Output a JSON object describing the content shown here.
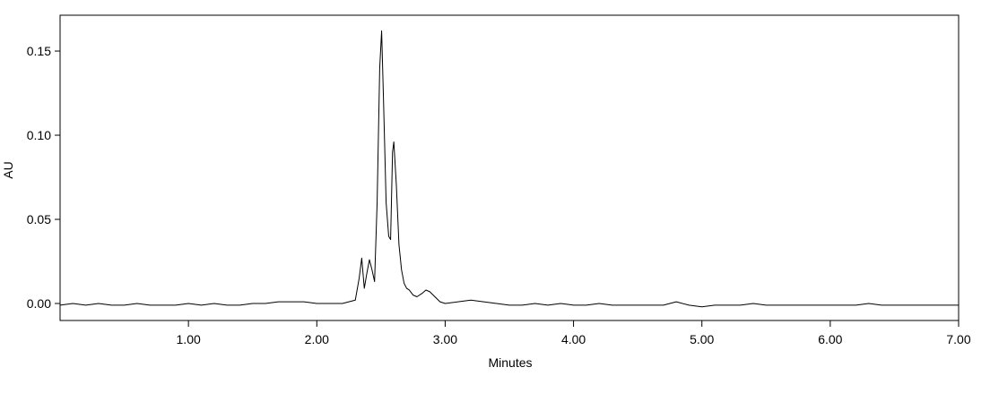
{
  "chart_data": {
    "type": "line",
    "x_label": "Minutes",
    "y_label": "AU",
    "color": "#000000",
    "xlim": [
      0,
      7
    ],
    "ylim": [
      -0.0101,
      0.1713
    ],
    "xticks": [
      {
        "value": 1,
        "label": "1.00"
      },
      {
        "value": 2,
        "label": "2.00"
      },
      {
        "value": 3,
        "label": "3.00"
      },
      {
        "value": 4,
        "label": "4.00"
      },
      {
        "value": 5,
        "label": "5.00"
      },
      {
        "value": 6,
        "label": "6.00"
      },
      {
        "value": 7,
        "label": "7.00"
      }
    ],
    "yticks": [
      {
        "value": 0,
        "label": "0.00"
      },
      {
        "value": 0.05,
        "label": "0.05"
      },
      {
        "value": 0.1,
        "label": "0.10"
      },
      {
        "value": 0.15,
        "label": "0.15"
      }
    ],
    "x": [
      0,
      0.1,
      0.2,
      0.3,
      0.4,
      0.5,
      0.6,
      0.7,
      0.8,
      0.9,
      1.0,
      1.1,
      1.2,
      1.3,
      1.4,
      1.5,
      1.6,
      1.7,
      1.8,
      1.9,
      2.0,
      2.1,
      2.2,
      2.25,
      2.3,
      2.33,
      2.35,
      2.37,
      2.39,
      2.41,
      2.43,
      2.45,
      2.47,
      2.49,
      2.505,
      2.52,
      2.54,
      2.56,
      2.575,
      2.59,
      2.6,
      2.62,
      2.64,
      2.66,
      2.68,
      2.7,
      2.72,
      2.75,
      2.78,
      2.82,
      2.85,
      2.88,
      2.92,
      2.96,
      3.0,
      3.1,
      3.2,
      3.3,
      3.4,
      3.5,
      3.6,
      3.7,
      3.8,
      3.9,
      4.0,
      4.1,
      4.2,
      4.3,
      4.4,
      4.5,
      4.6,
      4.7,
      4.8,
      4.9,
      5.0,
      5.1,
      5.2,
      5.3,
      5.4,
      5.5,
      5.6,
      5.7,
      5.8,
      5.9,
      6.0,
      6.1,
      6.2,
      6.3,
      6.4,
      6.5,
      6.6,
      6.7,
      6.8,
      6.9,
      7.0
    ],
    "values": [
      -0.001,
      0.0,
      -0.001,
      0.0,
      -0.001,
      -0.001,
      0.0,
      -0.001,
      -0.001,
      -0.001,
      0.0,
      -0.001,
      0.0,
      -0.001,
      -0.001,
      0.0,
      0.0,
      0.001,
      0.001,
      0.001,
      0.0,
      0.0,
      0.0,
      0.001,
      0.002,
      0.015,
      0.027,
      0.009,
      0.018,
      0.026,
      0.02,
      0.013,
      0.06,
      0.14,
      0.162,
      0.12,
      0.06,
      0.04,
      0.038,
      0.09,
      0.096,
      0.07,
      0.035,
      0.02,
      0.012,
      0.009,
      0.008,
      0.005,
      0.004,
      0.006,
      0.008,
      0.007,
      0.004,
      0.001,
      0.0,
      0.001,
      0.002,
      0.001,
      0.0,
      -0.001,
      -0.001,
      0.0,
      -0.001,
      0.0,
      -0.001,
      -0.001,
      0.0,
      -0.001,
      -0.001,
      -0.001,
      -0.001,
      -0.001,
      0.001,
      -0.001,
      -0.002,
      -0.001,
      -0.001,
      -0.001,
      0.0,
      -0.001,
      -0.001,
      -0.001,
      -0.001,
      -0.001,
      -0.001,
      -0.001,
      -0.001,
      0.0,
      -0.001,
      -0.001,
      -0.001,
      -0.001,
      -0.001,
      -0.001,
      -0.001
    ]
  }
}
